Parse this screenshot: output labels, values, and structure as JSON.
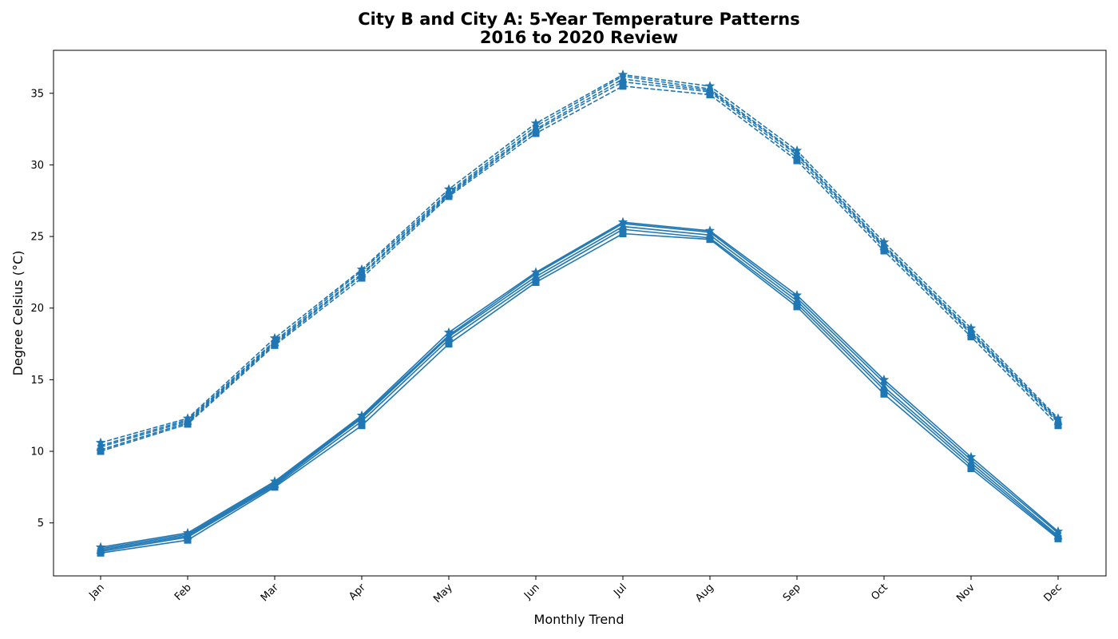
{
  "chart_data": {
    "type": "line",
    "title_line1": "City B and City A: 5-Year Temperature Patterns",
    "title_line2": "2016 to 2020 Review",
    "xlabel": "Monthly Trend",
    "ylabel": "Degree Celsius (°C)",
    "categories": [
      "Jan",
      "Feb",
      "Mar",
      "Apr",
      "May",
      "Jun",
      "Jul",
      "Aug",
      "Sep",
      "Oct",
      "Nov",
      "Dec"
    ],
    "yticks": [
      5,
      10,
      15,
      20,
      25,
      30,
      35
    ],
    "ylim": [
      1.3,
      38
    ],
    "grid": false,
    "legend": "none",
    "color": "#1f77b4",
    "series": [
      {
        "line_style": "dashed",
        "marker": "square",
        "values": [
          10.0,
          11.9,
          17.4,
          22.1,
          27.8,
          32.2,
          35.5,
          34.9,
          30.3,
          24.0,
          18.0,
          11.8
        ]
      },
      {
        "line_style": "dashed",
        "marker": "circle",
        "values": [
          10.1,
          12.0,
          17.5,
          22.3,
          27.9,
          32.4,
          35.8,
          35.1,
          30.5,
          24.2,
          18.2,
          12.0
        ]
      },
      {
        "line_style": "dashed",
        "marker": "triangle",
        "values": [
          10.3,
          12.1,
          17.6,
          22.4,
          28.0,
          32.5,
          36.0,
          35.2,
          30.7,
          24.3,
          18.3,
          12.1
        ]
      },
      {
        "line_style": "dashed",
        "marker": "diamond",
        "values": [
          10.4,
          12.2,
          17.7,
          22.6,
          28.1,
          32.7,
          36.2,
          35.3,
          30.8,
          24.4,
          18.4,
          12.2
        ]
      },
      {
        "line_style": "dashed",
        "marker": "star",
        "values": [
          10.6,
          12.3,
          17.9,
          22.7,
          28.3,
          32.9,
          36.3,
          35.5,
          31.0,
          24.6,
          18.6,
          12.3
        ]
      },
      {
        "line_style": "solid",
        "marker": "square",
        "values": [
          2.9,
          3.8,
          7.5,
          11.8,
          17.5,
          21.8,
          25.2,
          24.8,
          20.1,
          14.0,
          8.8,
          3.9
        ]
      },
      {
        "line_style": "solid",
        "marker": "circle",
        "values": [
          3.0,
          4.0,
          7.6,
          12.1,
          17.8,
          22.0,
          25.5,
          24.9,
          20.3,
          14.3,
          9.0,
          4.0
        ]
      },
      {
        "line_style": "solid",
        "marker": "triangle",
        "values": [
          3.1,
          4.1,
          7.7,
          12.3,
          18.0,
          22.2,
          25.7,
          25.1,
          20.5,
          14.5,
          9.2,
          4.1
        ]
      },
      {
        "line_style": "solid",
        "marker": "diamond",
        "values": [
          3.2,
          4.2,
          7.8,
          12.4,
          18.1,
          22.4,
          25.9,
          25.3,
          20.7,
          14.8,
          9.4,
          4.3
        ]
      },
      {
        "line_style": "solid",
        "marker": "star",
        "values": [
          3.3,
          4.3,
          7.9,
          12.5,
          18.3,
          22.5,
          26.0,
          25.4,
          20.9,
          15.0,
          9.6,
          4.4
        ]
      }
    ]
  }
}
